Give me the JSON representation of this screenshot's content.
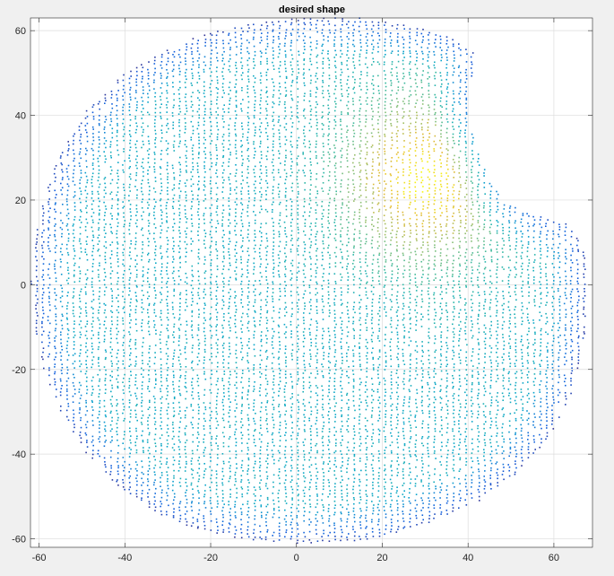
{
  "chart_data": {
    "type": "scatter",
    "title": "desired shape",
    "xlabel": "",
    "ylabel": "",
    "xlim": [
      -62,
      69
    ],
    "ylim": [
      -62,
      63
    ],
    "x_ticks": [
      "-60",
      "-40",
      "-20",
      "0",
      "20",
      "40",
      "60"
    ],
    "x_tick_values": [
      -60,
      -40,
      -20,
      0,
      20,
      40,
      60
    ],
    "y_ticks": [
      "60",
      "40",
      "20",
      "0",
      "-20",
      "-40",
      "-60"
    ],
    "y_tick_values": [
      60,
      40,
      20,
      0,
      -20,
      -40,
      -60
    ],
    "grid": true,
    "box": true,
    "colormap": "parula",
    "marker": "dot",
    "shape": {
      "description": "filled disc of points with a notch cut out on the upper right",
      "outline": [
        [
          -62,
          0
        ],
        [
          -61,
          -10
        ],
        [
          -59,
          -20
        ],
        [
          -55,
          -30
        ],
        [
          -49,
          -40
        ],
        [
          -41,
          -48
        ],
        [
          -31,
          -55
        ],
        [
          -19,
          -59
        ],
        [
          -6,
          -61
        ],
        [
          7,
          -61
        ],
        [
          20,
          -60
        ],
        [
          32,
          -56
        ],
        [
          43,
          -51
        ],
        [
          52,
          -44
        ],
        [
          59,
          -36
        ],
        [
          64,
          -26
        ],
        [
          67,
          -14
        ],
        [
          68,
          -2
        ],
        [
          67,
          8
        ],
        [
          64,
          14
        ],
        [
          57,
          16
        ],
        [
          50,
          19
        ],
        [
          46,
          23
        ],
        [
          44,
          28
        ],
        [
          42,
          33
        ],
        [
          40,
          38
        ],
        [
          40,
          44
        ],
        [
          41,
          49
        ],
        [
          42,
          54
        ],
        [
          38,
          58
        ],
        [
          28,
          61
        ],
        [
          15,
          63
        ],
        [
          0,
          63
        ],
        [
          -15,
          61
        ],
        [
          -28,
          57
        ],
        [
          -40,
          50
        ],
        [
          -49,
          41
        ],
        [
          -55,
          31
        ],
        [
          -59,
          20
        ],
        [
          -61,
          10
        ]
      ],
      "hotspot_center": [
        30,
        25
      ],
      "color_value_range": [
        0,
        1
      ]
    }
  }
}
